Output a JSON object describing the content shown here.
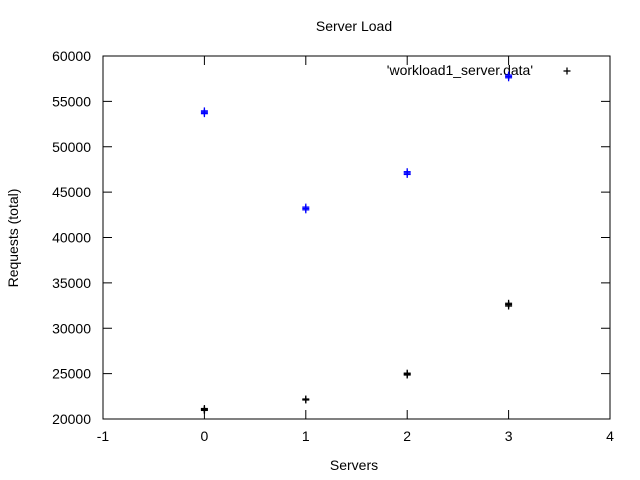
{
  "chart_data": {
    "type": "scatter",
    "title": "Server Load",
    "xlabel": "Servers",
    "ylabel": "Requests (total)",
    "xlim": [
      -1,
      4
    ],
    "ylim": [
      20000,
      60000
    ],
    "x_ticks": [
      "-1",
      "0",
      "1",
      "2",
      "3",
      "4"
    ],
    "x_tick_values": [
      -1,
      0,
      1,
      2,
      3,
      4
    ],
    "y_ticks": [
      "20000",
      "25000",
      "30000",
      "35000",
      "40000",
      "45000",
      "50000",
      "55000",
      "60000"
    ],
    "y_tick_values": [
      20000,
      25000,
      30000,
      35000,
      40000,
      45000,
      50000,
      55000,
      60000
    ],
    "grid": false,
    "legend": {
      "position": "top-right",
      "label": "'workload1_server.data'"
    },
    "series": [
      {
        "name": "'workload1_server.data'",
        "marker": "plus",
        "color": "#0000ff",
        "points": [
          {
            "x": 0,
            "y": 53950
          },
          {
            "x": 0,
            "y": 53800
          },
          {
            "x": 0,
            "y": 53650
          },
          {
            "x": 1,
            "y": 43350
          },
          {
            "x": 1,
            "y": 43200
          },
          {
            "x": 1,
            "y": 43050
          },
          {
            "x": 2,
            "y": 47250
          },
          {
            "x": 2,
            "y": 47100
          },
          {
            "x": 2,
            "y": 46950
          },
          {
            "x": 3,
            "y": 57900
          },
          {
            "x": 3,
            "y": 57750
          },
          {
            "x": 3,
            "y": 57600
          }
        ]
      },
      {
        "name": "'workload1_server.data'",
        "marker": "plus",
        "color": "#000000",
        "points": [
          {
            "x": 0,
            "y": 21150
          },
          {
            "x": 0,
            "y": 21050
          },
          {
            "x": 0,
            "y": 20950
          },
          {
            "x": 1,
            "y": 22200
          },
          {
            "x": 1,
            "y": 22100
          },
          {
            "x": 2,
            "y": 25050
          },
          {
            "x": 2,
            "y": 24950
          },
          {
            "x": 2,
            "y": 24850
          },
          {
            "x": 3,
            "y": 32750
          },
          {
            "x": 3,
            "y": 32600
          },
          {
            "x": 3,
            "y": 32450
          }
        ]
      }
    ]
  }
}
